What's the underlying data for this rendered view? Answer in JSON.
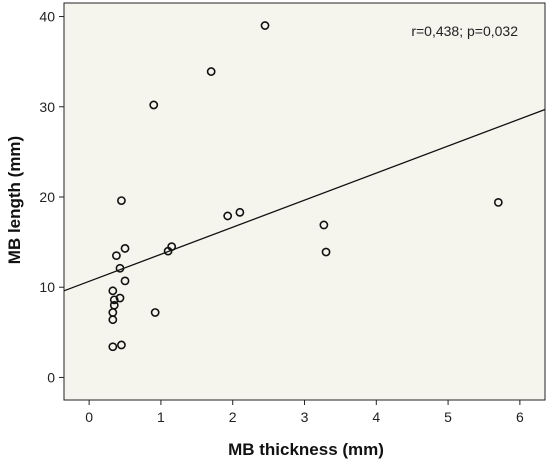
{
  "chart_data": {
    "type": "scatter",
    "xlabel": "MB thickness (mm)",
    "ylabel": "MB length (mm)",
    "annotation": "r=0,438; p=0,032",
    "xlim": [
      -0.35,
      6.35
    ],
    "ylim": [
      -2.5,
      41.5
    ],
    "x_ticks": [
      0,
      1,
      2,
      3,
      4,
      5,
      6
    ],
    "y_ticks": [
      0,
      10,
      20,
      30,
      40
    ],
    "grid": false,
    "background_color": "#f5f5ee",
    "marker_color": "#111111",
    "fit_line": {
      "intercept": 10.65,
      "slope": 3.0
    },
    "points": [
      {
        "x": 2.45,
        "y": 39.0
      },
      {
        "x": 1.7,
        "y": 33.9
      },
      {
        "x": 0.9,
        "y": 30.2
      },
      {
        "x": 0.45,
        "y": 19.6
      },
      {
        "x": 5.7,
        "y": 19.4
      },
      {
        "x": 2.1,
        "y": 18.3
      },
      {
        "x": 1.93,
        "y": 17.9
      },
      {
        "x": 3.27,
        "y": 16.9
      },
      {
        "x": 1.15,
        "y": 14.5
      },
      {
        "x": 1.1,
        "y": 14.0
      },
      {
        "x": 0.5,
        "y": 14.3
      },
      {
        "x": 3.3,
        "y": 13.9
      },
      {
        "x": 0.38,
        "y": 13.5
      },
      {
        "x": 0.43,
        "y": 12.1
      },
      {
        "x": 0.5,
        "y": 10.7
      },
      {
        "x": 0.33,
        "y": 9.6
      },
      {
        "x": 0.43,
        "y": 8.8
      },
      {
        "x": 0.35,
        "y": 8.6
      },
      {
        "x": 0.35,
        "y": 8.0
      },
      {
        "x": 0.33,
        "y": 7.2
      },
      {
        "x": 0.92,
        "y": 7.2
      },
      {
        "x": 0.33,
        "y": 6.4
      },
      {
        "x": 0.45,
        "y": 3.6
      },
      {
        "x": 0.33,
        "y": 3.4
      }
    ]
  }
}
